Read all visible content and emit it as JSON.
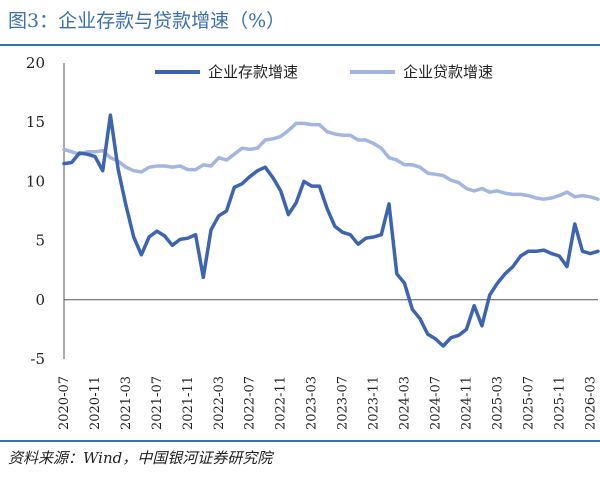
{
  "title": "图3：企业存款与贷款增速（%）",
  "source": "资料来源：Wind，中国银河证券研究院",
  "colors": {
    "deposit": "#3c64b1",
    "loan": "#a3b6e0",
    "frame": "#3a6fb0"
  },
  "chart_data": {
    "type": "line",
    "title": "图3：企业存款与贷款增速（%）",
    "ylim": [
      -5,
      20
    ],
    "yticks": [
      -5,
      0,
      5,
      10,
      15,
      20
    ],
    "grid": false,
    "legend_placement": "top",
    "x_start": "2020-07",
    "x_end": "2026-04",
    "xtick_labels": [
      "2020-07",
      "2020-11",
      "2021-03",
      "2021-07",
      "2021-11",
      "2022-03",
      "2022-07",
      "2022-11",
      "2023-03",
      "2023-07",
      "2023-11",
      "2024-03",
      "2024-07",
      "2024-11",
      "2025-03",
      "2025-07",
      "2025-11",
      "2026-03"
    ],
    "series": [
      {
        "name": "企业存款增速",
        "values": [
          11.5,
          11.6,
          12.4,
          12.3,
          12.1,
          10.9,
          15.6,
          11.0,
          8.0,
          5.3,
          3.8,
          5.3,
          5.8,
          5.4,
          4.6,
          5.1,
          5.2,
          5.5,
          1.9,
          5.9,
          7.1,
          7.5,
          9.5,
          9.8,
          10.4,
          10.9,
          11.2,
          10.3,
          9.2,
          7.2,
          8.2,
          10.0,
          9.6,
          9.6,
          7.7,
          6.2,
          5.7,
          5.5,
          4.7,
          5.2,
          5.3,
          5.5,
          8.1,
          2.2,
          1.4,
          -0.8,
          -1.6,
          -2.9,
          -3.3,
          -3.9,
          -3.2,
          -3.0,
          -2.5,
          -0.5,
          -2.2,
          0.4,
          1.4,
          2.2,
          2.8,
          3.7,
          4.1,
          4.1,
          4.2,
          3.9,
          3.7,
          2.8,
          6.4,
          4.1,
          3.9,
          4.1
        ]
      },
      {
        "name": "企业贷款增速",
        "values": [
          12.7,
          12.5,
          12.3,
          12.5,
          12.5,
          12.6,
          12.0,
          11.7,
          11.2,
          10.9,
          10.8,
          11.2,
          11.3,
          11.3,
          11.2,
          11.3,
          11.0,
          11.0,
          11.4,
          11.3,
          12.0,
          11.8,
          12.3,
          12.8,
          12.7,
          12.8,
          13.5,
          13.6,
          13.8,
          14.3,
          14.9,
          14.9,
          14.8,
          14.8,
          14.2,
          14.0,
          13.9,
          13.9,
          13.5,
          13.5,
          13.2,
          12.8,
          12.0,
          11.8,
          11.4,
          11.4,
          11.2,
          10.7,
          10.6,
          10.5,
          10.1,
          9.9,
          9.4,
          9.2,
          9.4,
          9.1,
          9.2,
          9.0,
          8.9,
          8.9,
          8.8,
          8.6,
          8.5,
          8.6,
          8.8,
          9.1,
          8.7,
          8.8,
          8.7,
          8.5
        ]
      }
    ]
  }
}
